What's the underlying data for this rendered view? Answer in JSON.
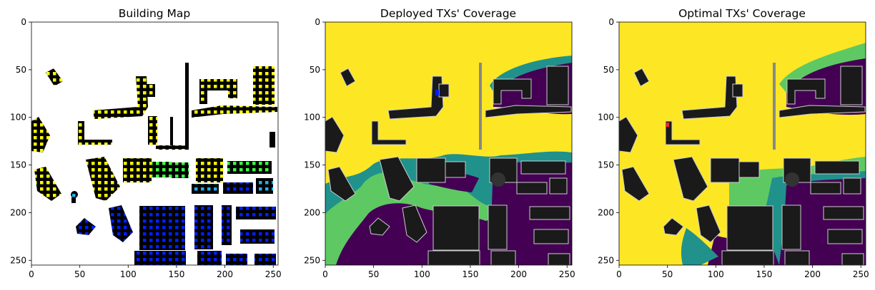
{
  "chart_data": [
    {
      "type": "heatmap",
      "title": "Building Map",
      "xlim": [
        0,
        255
      ],
      "ylim": [
        255,
        0
      ],
      "xticks": [
        0,
        50,
        100,
        150,
        200,
        250
      ],
      "yticks": [
        0,
        50,
        100,
        150,
        200,
        250
      ],
      "colors": {
        "background": "#ffffff",
        "building": "#000000",
        "marker_yellow": "#ffff00",
        "marker_green": "#40ff40",
        "marker_cyan": "#20b0f0",
        "marker_blue": "#0020ff"
      }
    },
    {
      "type": "heatmap",
      "title": "Deployed TXs' Coverage",
      "xlim": [
        0,
        255
      ],
      "ylim": [
        255,
        0
      ],
      "xticks": [
        0,
        50,
        100,
        150,
        200,
        250
      ],
      "yticks": [
        0,
        50,
        100,
        150,
        200,
        250
      ],
      "colors": {
        "high": "#fde725",
        "mid_high": "#5ec962",
        "mid": "#21918c",
        "low": "#440154",
        "building": "#1a1a1a"
      }
    },
    {
      "type": "heatmap",
      "title": "Optimal TXs' Coverage",
      "xlim": [
        0,
        255
      ],
      "ylim": [
        255,
        0
      ],
      "xticks": [
        0,
        50,
        100,
        150,
        200,
        250
      ],
      "yticks": [
        0,
        50,
        100,
        150,
        200,
        250
      ],
      "colors": {
        "high": "#fde725",
        "mid_high": "#5ec962",
        "mid": "#21918c",
        "low": "#440154",
        "building": "#1a1a1a",
        "tx_marker": "#ff2020"
      }
    }
  ]
}
